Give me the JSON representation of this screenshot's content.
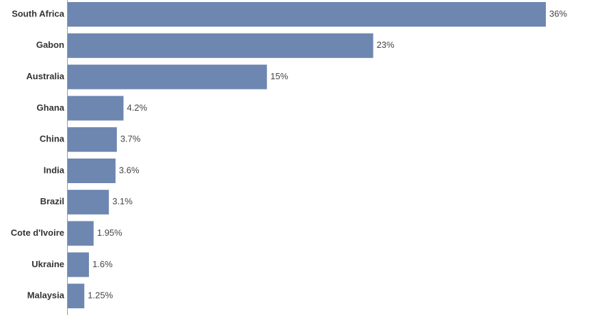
{
  "chart_data": {
    "type": "hbar",
    "categories": [
      "South Africa",
      "Gabon",
      "Australia",
      "Ghana",
      "China",
      "India",
      "Brazil",
      "Cote d'Ivoire",
      "Ukraine",
      "Malaysia"
    ],
    "values": [
      36,
      23,
      15,
      4.2,
      3.7,
      3.6,
      3.1,
      1.95,
      1.6,
      1.25
    ],
    "value_labels": [
      "36%",
      "23%",
      "15%",
      "4.2%",
      "3.7%",
      "3.6%",
      "3.1%",
      "1.95%",
      "1.6%",
      "1.25%"
    ],
    "color": "#6e87b1"
  }
}
